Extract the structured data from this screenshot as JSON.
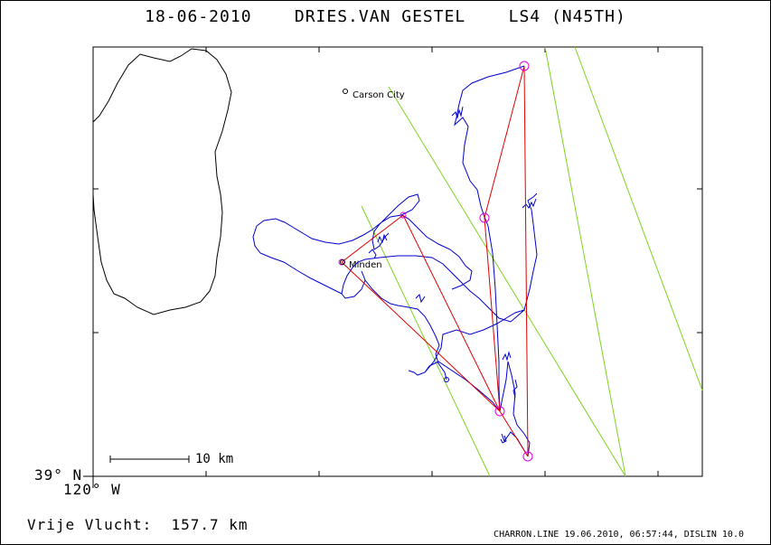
{
  "header": {
    "title": "18-06-2010    DRIES.VAN GESTEL    LS4 (N45TH)"
  },
  "map": {
    "places": [
      {
        "name": "Carson City"
      },
      {
        "name": "Minden"
      }
    ],
    "scale_bar_label": "10 km",
    "latitude_label": "39° N",
    "longitude_label": "120° W",
    "colors": {
      "frame": "#000000",
      "shoreline": "#000000",
      "track": "#0000cc",
      "task_legs": "#e00000",
      "turnpoints": "#e000e0",
      "airspace_lines": "#7ed31f"
    }
  },
  "summary": {
    "distance_label": "Vrije Vlucht:  157.7 km"
  },
  "footer": {
    "credit": "CHARRON.LINE 19.06.2010, 06:57:44, DISLIN 10.0"
  }
}
